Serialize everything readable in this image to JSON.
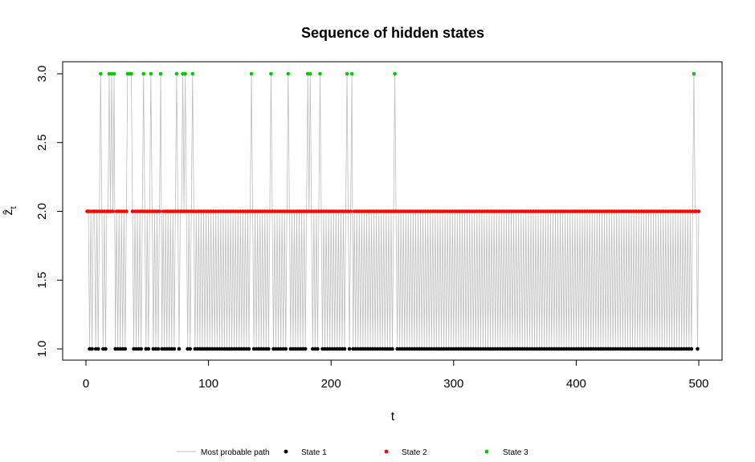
{
  "chart_data": {
    "type": "line",
    "title": "Sequence of hidden states",
    "xlabel": "t",
    "ylabel": "ẑ",
    "ylabel_subscript": "t",
    "xlim": [
      0,
      500
    ],
    "ylim": [
      1.0,
      3.0
    ],
    "x_ticks": [
      "0",
      "100",
      "200",
      "300",
      "400",
      "500"
    ],
    "y_ticks": [
      "1.0",
      "1.5",
      "2.0",
      "2.5",
      "3.0"
    ],
    "grid": false,
    "legend_position": "bottom",
    "colors": {
      "path": "#bebebe",
      "state1": "#000000",
      "state2": "#ff0000",
      "state3": "#00cd00"
    },
    "legend": [
      {
        "label": "Most probable path",
        "kind": "line",
        "color": "#bebebe"
      },
      {
        "label": "State 1",
        "kind": "point",
        "color": "#000000"
      },
      {
        "label": "State 2",
        "kind": "point",
        "color": "#ff0000"
      },
      {
        "label": "State 3",
        "kind": "point",
        "color": "#00cd00"
      }
    ],
    "x": {
      "from": 1,
      "to": 500,
      "step": 1
    },
    "states": "2212122121232121223232312121212123333212121212321212321212123121212121212321223232121232121212121212121212121212121212121212121212121232121212121212123212121212121232121212121212123232121212321212121212121212121232123121212121212121212121212121212121232121212121212121212121212121212121212121212121212121212121212121212121212121212121212121212121212121212121212121212121212121212121212121212121212121212121212121212121212121212121212121212121212121212121212121212121212121212121212121212121212123"
  }
}
